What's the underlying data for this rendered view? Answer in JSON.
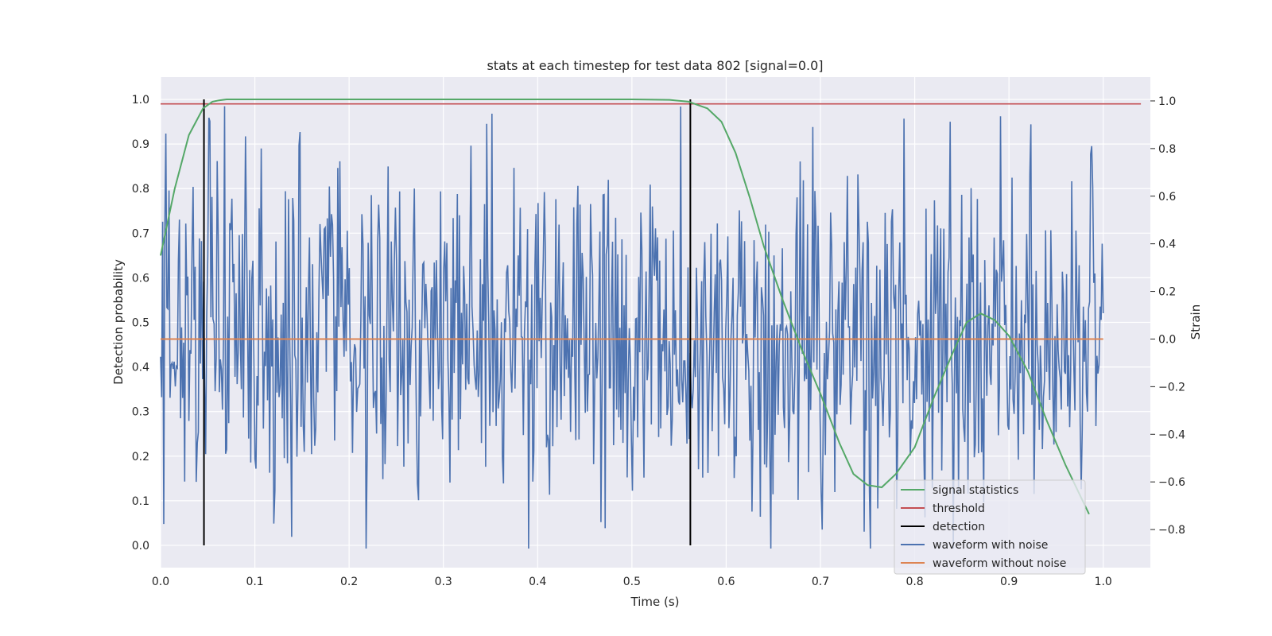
{
  "chart_data": {
    "type": "line",
    "title": "stats at each timestep for test data 802 [signal=0.0]",
    "xlabel": "Time (s)",
    "ylabel_left": "Detection probability",
    "ylabel_right": "Strain",
    "xlim": [
      0.0,
      1.05
    ],
    "ylim_left": [
      -0.05,
      1.05
    ],
    "ylim_right": [
      -0.96,
      1.1
    ],
    "x_ticks": [
      "0.0",
      "0.1",
      "0.2",
      "0.3",
      "0.4",
      "0.5",
      "0.6",
      "0.7",
      "0.8",
      "0.9",
      "1.0"
    ],
    "y_left_ticks": [
      "0.0",
      "0.1",
      "0.2",
      "0.3",
      "0.4",
      "0.5",
      "0.6",
      "0.7",
      "0.8",
      "0.9",
      "1.0"
    ],
    "y_right_ticks": [
      "−0.8",
      "−0.6",
      "−0.4",
      "−0.2",
      "0.0",
      "0.2",
      "0.4",
      "0.6",
      "0.8",
      "1.0"
    ],
    "grid": true,
    "legend_position": "lower-right",
    "series": [
      {
        "name": "signal statistics",
        "axis": "left",
        "color": "#55a868",
        "x": [
          0.0,
          0.015,
          0.03,
          0.045,
          0.055,
          0.062,
          0.07,
          0.1,
          0.2,
          0.3,
          0.4,
          0.5,
          0.54,
          0.56,
          0.58,
          0.595,
          0.61,
          0.625,
          0.64,
          0.66,
          0.68,
          0.7,
          0.72,
          0.735,
          0.75,
          0.765,
          0.78,
          0.8,
          0.82,
          0.84,
          0.855,
          0.87,
          0.885,
          0.9,
          0.92,
          0.94,
          0.96,
          0.985
        ],
        "y": [
          0.65,
          0.8,
          0.92,
          0.98,
          0.995,
          0.998,
          1.0,
          1.0,
          1.0,
          1.0,
          1.0,
          1.0,
          0.999,
          0.995,
          0.98,
          0.95,
          0.88,
          0.78,
          0.67,
          0.55,
          0.44,
          0.34,
          0.23,
          0.16,
          0.135,
          0.13,
          0.16,
          0.22,
          0.33,
          0.43,
          0.5,
          0.52,
          0.505,
          0.47,
          0.39,
          0.28,
          0.18,
          0.07
        ]
      },
      {
        "name": "threshold",
        "axis": "left",
        "color": "#c44e52",
        "x": [
          0.0,
          1.04
        ],
        "y": [
          0.99,
          0.99
        ]
      },
      {
        "name": "detection",
        "axis": "left",
        "color": "#000000",
        "x": [
          0.046,
          0.562
        ],
        "y": [
          1.0,
          1.0
        ]
      },
      {
        "name": "waveform with noise",
        "axis": "right",
        "color": "#4c72b0",
        "x_range": [
          0.0,
          1.0
        ],
        "y_range": [
          -0.88,
          1.0
        ],
        "points": 900
      },
      {
        "name": "waveform without noise",
        "axis": "right",
        "color": "#dd8452",
        "x": [
          0.0,
          1.0
        ],
        "y": [
          0.0,
          0.0
        ]
      }
    ]
  }
}
